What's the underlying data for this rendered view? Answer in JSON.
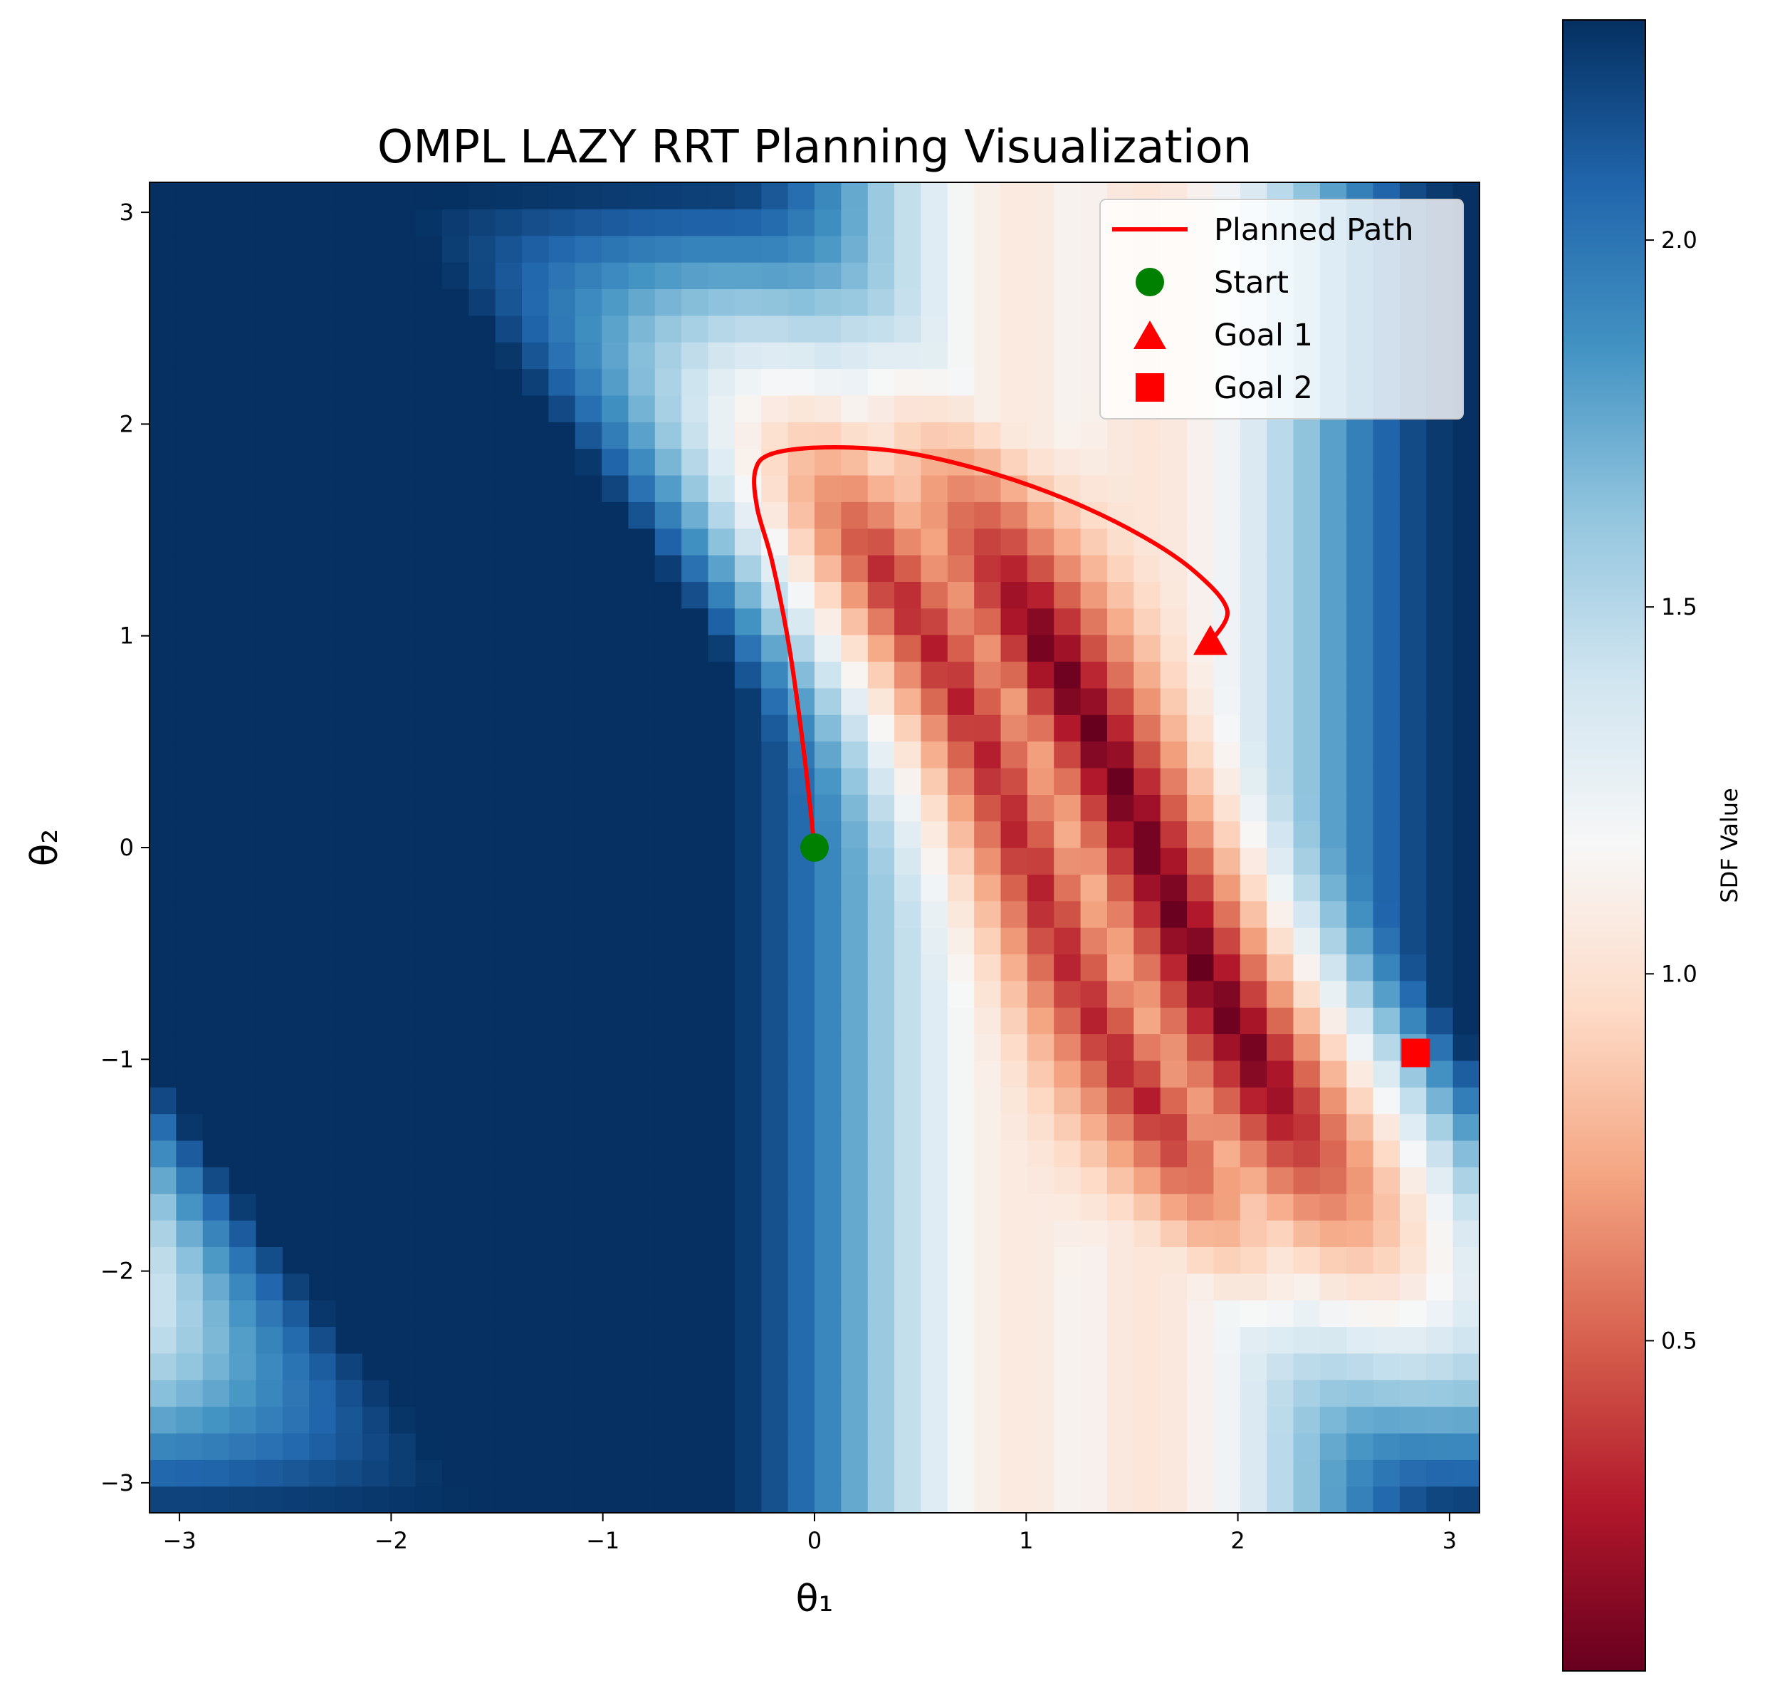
{
  "chart_data": {
    "type": "heatmap",
    "title": "OMPL LAZY RRT Planning Visualization",
    "xlabel": "θ₁",
    "ylabel": "θ₂",
    "xlim": [
      -3.1416,
      3.1416
    ],
    "ylim": [
      -3.1416,
      3.1416
    ],
    "grid_size": 50,
    "x_ticks": [
      -3,
      -2,
      -1,
      0,
      1,
      2,
      3
    ],
    "y_ticks": [
      -3,
      -2,
      -1,
      0,
      1,
      2,
      3
    ],
    "x_tick_labels": [
      "−3",
      "−2",
      "−1",
      "0",
      "1",
      "2",
      "3"
    ],
    "y_tick_labels": [
      "−3",
      "−2",
      "−1",
      "0",
      "1",
      "2",
      "3"
    ],
    "grid": false,
    "colormap": "RdBu",
    "colorbar": {
      "label": "SDF Value",
      "range": [
        0.05,
        2.3
      ],
      "ticks": [
        0.5,
        1.0,
        1.5,
        2.0
      ],
      "tick_labels": [
        "0.5",
        "1.0",
        "1.5",
        "2.0"
      ]
    },
    "legend": {
      "placement": "top-right",
      "entries": [
        {
          "label": "Planned Path",
          "marker": "line",
          "color": "#ff0000"
        },
        {
          "label": "Start",
          "marker": "circle",
          "color": "#008000"
        },
        {
          "label": "Goal 1",
          "marker": "triangle",
          "color": "#ff0000"
        },
        {
          "label": "Goal 2",
          "marker": "square",
          "color": "#ff0000"
        }
      ]
    },
    "start": {
      "x": 0.0,
      "y": 0.0
    },
    "goal1": {
      "x": 1.87,
      "y": 0.97
    },
    "goal2": {
      "x": 2.84,
      "y": -0.97
    },
    "path": [
      [
        0.0,
        0.0
      ],
      [
        -0.05,
        0.45
      ],
      [
        -0.12,
        0.95
      ],
      [
        -0.2,
        1.35
      ],
      [
        -0.27,
        1.6
      ],
      [
        -0.28,
        1.78
      ],
      [
        -0.2,
        1.86
      ],
      [
        0.05,
        1.89
      ],
      [
        0.4,
        1.87
      ],
      [
        0.8,
        1.78
      ],
      [
        1.2,
        1.64
      ],
      [
        1.55,
        1.47
      ],
      [
        1.8,
        1.3
      ],
      [
        1.95,
        1.12
      ],
      [
        1.87,
        0.97
      ]
    ]
  }
}
